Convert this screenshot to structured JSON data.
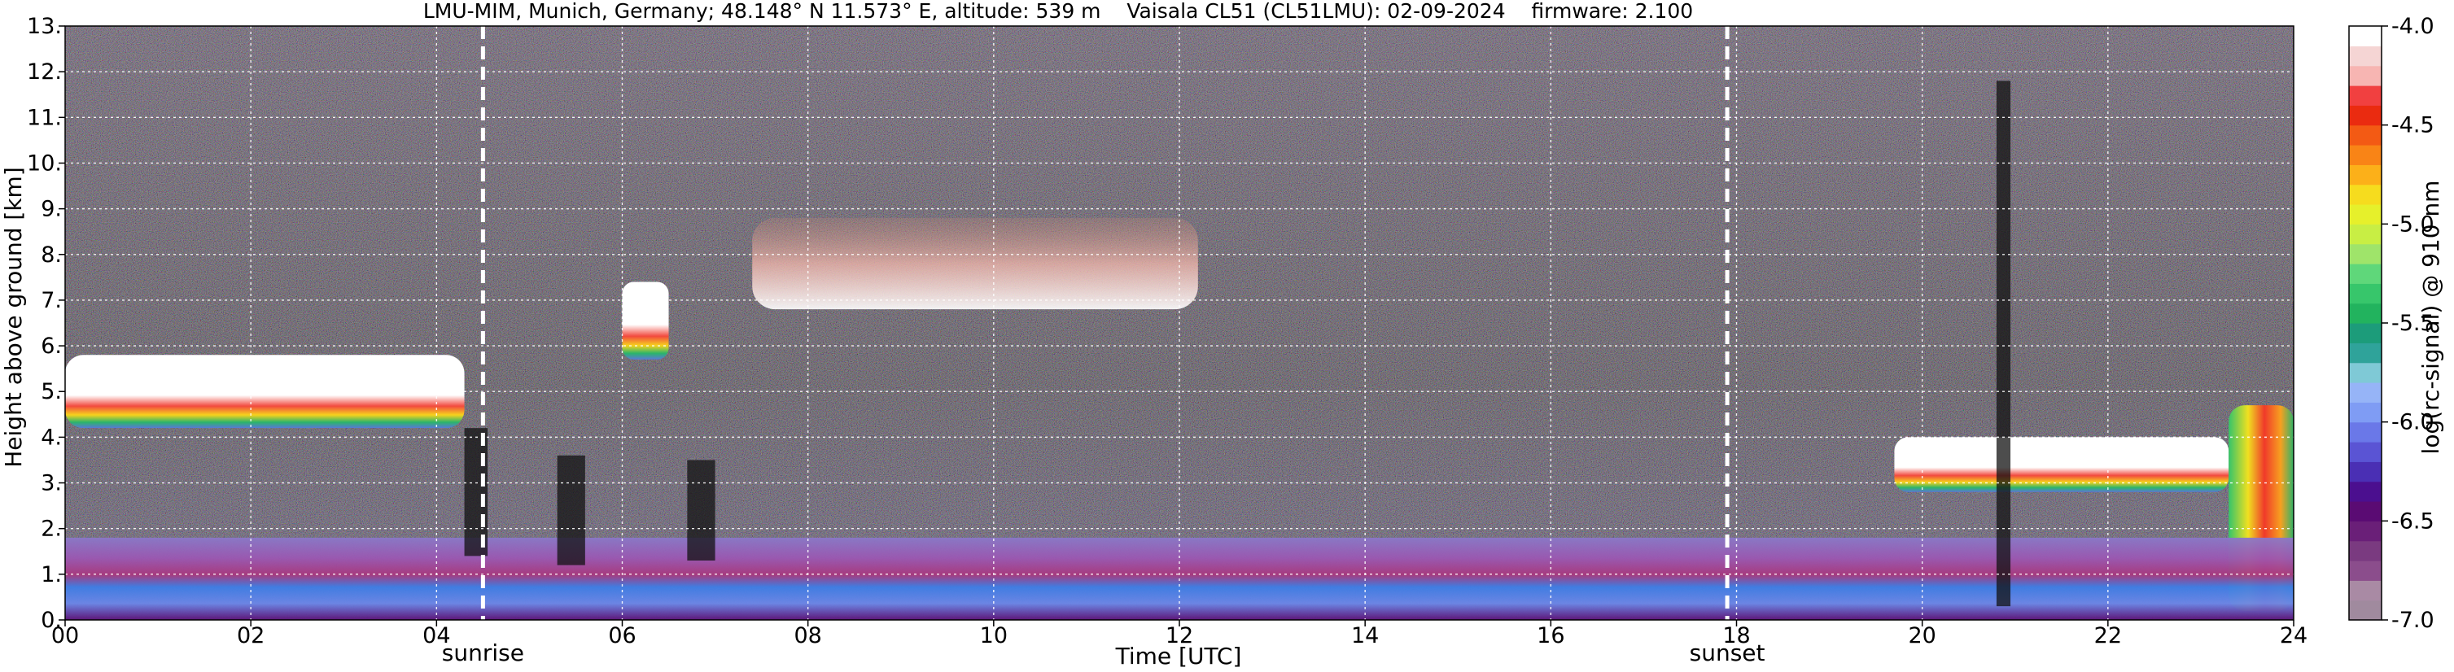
{
  "chart_data": {
    "type": "heatmap",
    "title": "LMU-MIM, Munich, Germany; 48.148° N 11.573° E, altitude: 539 m    Vaisala CL51 (CL51LMU): 02-09-2024    firmware: 2.100",
    "xlabel": "Time [UTC]",
    "ylabel": "Height above ground [km]",
    "xlim": [
      0,
      24
    ],
    "ylim": [
      0,
      13
    ],
    "x_ticks": [
      "00",
      "02",
      "04",
      "06",
      "08",
      "10",
      "12",
      "14",
      "16",
      "18",
      "20",
      "22",
      "24"
    ],
    "y_ticks": [
      "0.",
      "1.",
      "2.",
      "3.",
      "4.",
      "5.",
      "6.",
      "7.",
      "8.",
      "9.",
      "10.",
      "11.",
      "12.",
      "13."
    ],
    "grid": true,
    "colorbar": {
      "label": "log(rc-signal) @ 910 nm",
      "min": -7.0,
      "max": -4.0,
      "ticks": [
        "-4.0",
        "-4.5",
        "-5.0",
        "-5.5",
        "-6.0",
        "-6.5",
        "-7.0"
      ],
      "colors": [
        "#a08a9e",
        "#a98aa4",
        "#8b4d8c",
        "#7a3a80",
        "#6a1f78",
        "#5a0b73",
        "#4b0f8f",
        "#4a2fb4",
        "#5a54d4",
        "#6a78e8",
        "#7f9cf4",
        "#96b4f7",
        "#7fc9d6",
        "#2fa39a",
        "#1c9c7a",
        "#22b35e",
        "#37c66b",
        "#5fd77a",
        "#9fe46a",
        "#c8ee44",
        "#e6f02b",
        "#f6dc1e",
        "#fcb019",
        "#f98416",
        "#f35a14",
        "#ea2b10",
        "#f14040",
        "#f7b5b2",
        "#f5d5d4",
        "#ffffff"
      ]
    },
    "markers": [
      {
        "label": "sunrise",
        "time": 4.5
      },
      {
        "label": "sunset",
        "time": 17.9
      }
    ],
    "features": [
      {
        "kind": "cloud_layer",
        "t_start": 0.0,
        "t_end": 4.3,
        "base_km": 4.2,
        "top_km": 5.8
      },
      {
        "kind": "cloud_patch",
        "t_start": 6.0,
        "t_end": 6.5,
        "base_km": 5.7,
        "top_km": 7.4
      },
      {
        "kind": "cirrus",
        "t_start": 7.4,
        "t_end": 12.2,
        "base_km": 6.8,
        "top_km": 8.8
      },
      {
        "kind": "cloud_layer",
        "t_start": 19.7,
        "t_end": 23.3,
        "base_km": 2.8,
        "top_km": 4.0
      },
      {
        "kind": "cloud_column",
        "t_start": 23.3,
        "t_end": 24.0,
        "base_km": 0.2,
        "top_km": 4.7
      },
      {
        "kind": "boundary_layer",
        "t_start": 0.0,
        "t_end": 24.0,
        "base_km": 0.0,
        "top_km": 1.8
      }
    ]
  }
}
